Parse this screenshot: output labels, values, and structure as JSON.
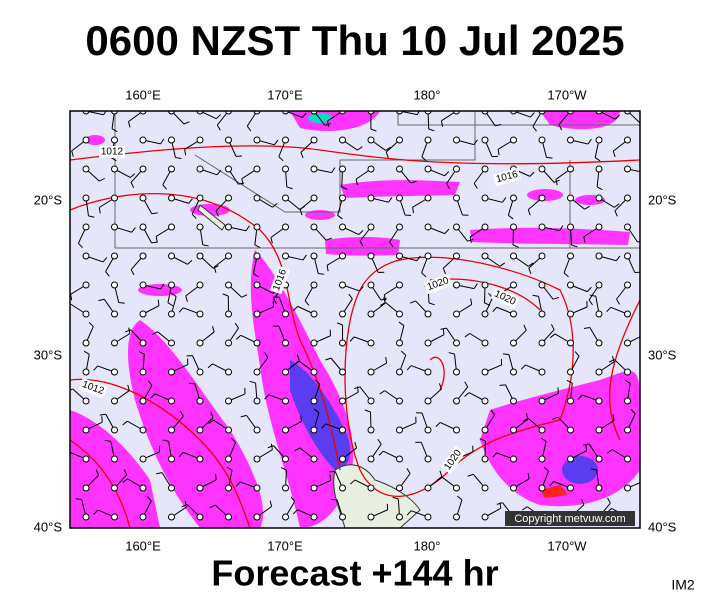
{
  "header": {
    "title": "0600 NZST Thu 10 Jul 2025"
  },
  "map": {
    "longitude_labels": [
      "160°E",
      "170°E",
      "180°",
      "170°W"
    ],
    "latitude_labels": [
      "20°S",
      "30°S",
      "40°S"
    ],
    "isobar_labels": [
      "1012",
      "1016",
      "1016",
      "1020",
      "1020",
      "1020",
      "1012"
    ],
    "copyright": "Copyright metvuw.com"
  },
  "footer": {
    "forecast": "Forecast +144 hr",
    "image_id": "IM2"
  }
}
